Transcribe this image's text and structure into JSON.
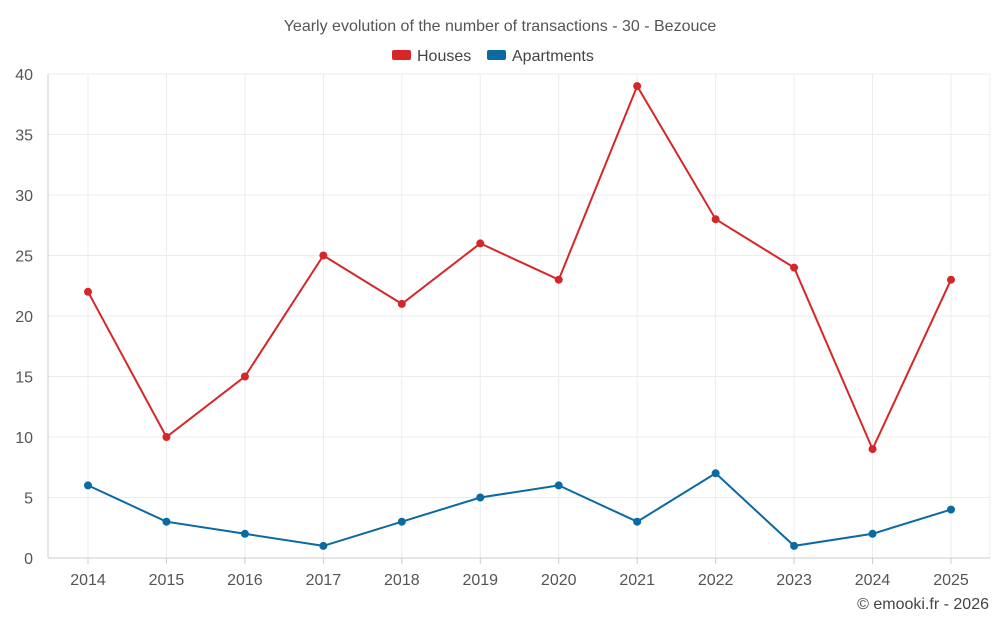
{
  "chart_data": {
    "type": "line",
    "title": "Yearly evolution of the number of transactions - 30 - Bezouce",
    "categories": [
      "2014",
      "2015",
      "2016",
      "2017",
      "2018",
      "2019",
      "2020",
      "2021",
      "2022",
      "2023",
      "2024",
      "2025"
    ],
    "series": [
      {
        "name": "Houses",
        "color": "#d62728",
        "values": [
          22,
          10,
          15,
          25,
          21,
          26,
          23,
          39,
          28,
          24,
          9,
          23
        ]
      },
      {
        "name": "Apartments",
        "color": "#0a6aa1",
        "values": [
          6,
          3,
          2,
          1,
          3,
          5,
          6,
          3,
          7,
          1,
          2,
          4
        ]
      }
    ],
    "yticks": [
      0,
      5,
      10,
      15,
      20,
      25,
      30,
      35,
      40
    ],
    "ylim": [
      0,
      40
    ],
    "xlabel": "",
    "ylabel": "",
    "grid": true,
    "legend_position": "top-center"
  },
  "credit": "© emooki.fr - 2026"
}
